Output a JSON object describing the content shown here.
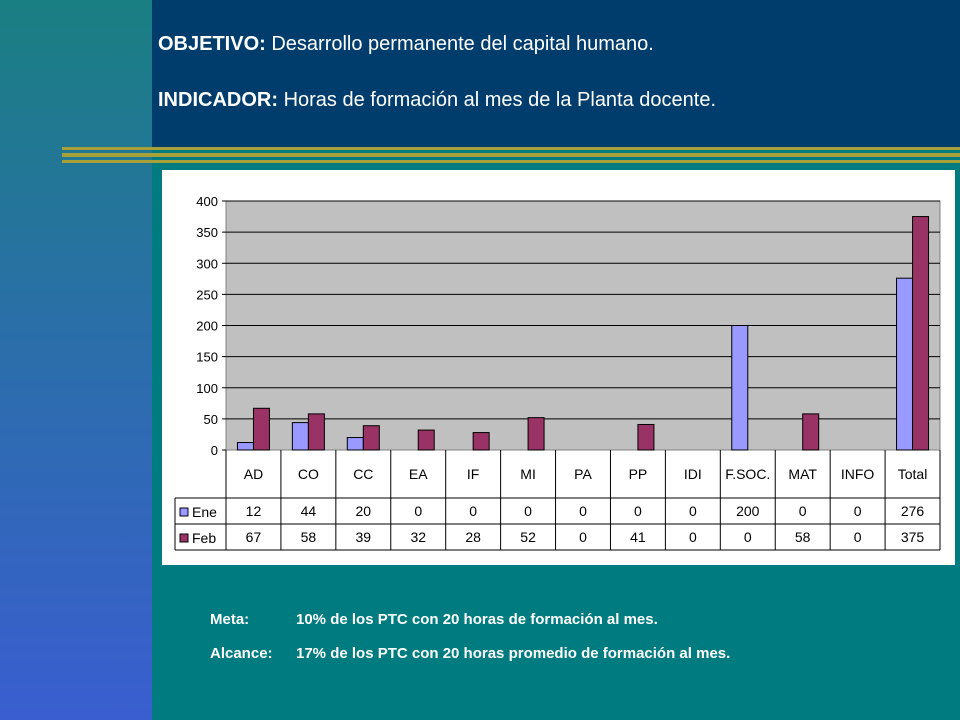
{
  "header": {
    "objetivo_label": "OBJETIVO:",
    "objetivo_text": "Desarrollo permanente del capital humano.",
    "indicador_label": "INDICADOR:",
    "indicador_text": "Horas de formación al mes de la Planta docente."
  },
  "chart_data": {
    "type": "bar",
    "categories": [
      "AD",
      "CO",
      "CC",
      "EA",
      "IF",
      "MI",
      "PA",
      "PP",
      "IDI",
      "F.SOC.",
      "MAT",
      "INFO",
      "Total"
    ],
    "series": [
      {
        "name": "Ene",
        "values": [
          12,
          44,
          20,
          0,
          0,
          0,
          0,
          0,
          0,
          200,
          0,
          0,
          276
        ],
        "color": "#9999ff"
      },
      {
        "name": "Feb",
        "values": [
          67,
          58,
          39,
          32,
          28,
          52,
          0,
          41,
          0,
          0,
          58,
          0,
          375
        ],
        "color": "#993366"
      }
    ],
    "table_values": {
      "Ene": [
        "12",
        "44",
        "20",
        "0",
        "0",
        "0",
        "0",
        "0",
        "0",
        "200",
        "0",
        "0",
        "276"
      ],
      "Feb": [
        "67",
        "58",
        "39",
        "32",
        "28",
        "52",
        "0",
        "41",
        "0",
        "0",
        "58",
        "0",
        "375"
      ]
    },
    "yticks": [
      "0",
      "50",
      "100",
      "150",
      "200",
      "250",
      "300",
      "350",
      "400"
    ],
    "ylim": [
      0,
      400
    ],
    "grid": true,
    "legend": "data-table",
    "plot_background": "#c0c0c0"
  },
  "notes": {
    "meta_label": "Meta:",
    "meta_text": "10% de los PTC con 20 horas de formación al mes.",
    "alcance_label": "Alcance:",
    "alcance_text": "17% de los PTC con 20 horas promedio de formación al mes."
  }
}
